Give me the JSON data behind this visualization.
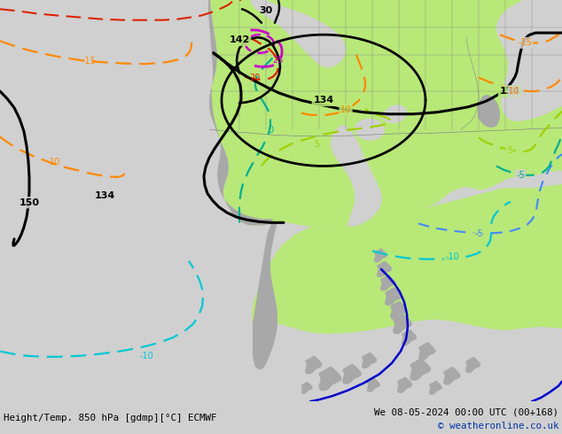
{
  "title_left": "Height/Temp. 850 hPa [gdmp][°C] ECMWF",
  "title_right": "We 08-05-2024 00:00 UTC (00+168)",
  "copyright": "© weatheronline.co.uk",
  "bg_color": "#d0d0d0",
  "land_green": "#b8e878",
  "land_gray": "#a8a8a8",
  "figsize": [
    6.34,
    4.9
  ],
  "dpi": 100,
  "black_lw": 2.2,
  "temp_lw": 1.6
}
